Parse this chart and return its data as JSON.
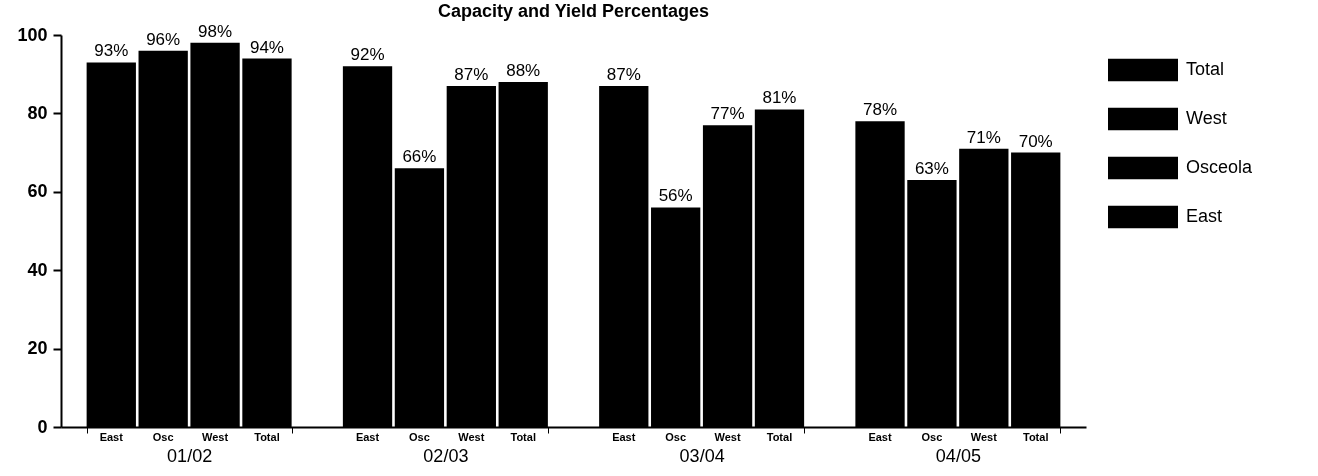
{
  "chart_data": {
    "type": "bar",
    "title": "Capacity and Yield Percentages",
    "categories": [
      "01/02",
      "02/03",
      "03/04",
      "04/05"
    ],
    "series": [
      {
        "name": "East",
        "color": "#000000",
        "values": [
          93,
          92,
          87,
          78
        ],
        "value_labels": [
          "93%",
          "92%",
          "87%",
          "78%"
        ]
      },
      {
        "name": "Osceola",
        "color": "#000000",
        "values": [
          96,
          66,
          56,
          63
        ],
        "value_labels": [
          "96%",
          "66%",
          "56%",
          "63%"
        ]
      },
      {
        "name": "West",
        "color": "#000000",
        "values": [
          98,
          87,
          77,
          71
        ],
        "value_labels": [
          "98%",
          "87%",
          "77%",
          "71%"
        ]
      },
      {
        "name": "Total",
        "color": "#000000",
        "values": [
          94,
          88,
          81,
          70
        ],
        "value_labels": [
          "94%",
          "88%",
          "81%",
          "70%"
        ]
      }
    ],
    "ylim": [
      0,
      100
    ],
    "yticks": [
      0,
      20,
      40,
      60,
      80,
      100
    ],
    "grid": false,
    "legend": "right",
    "annotations": [
      "East",
      "Osc",
      "West",
      "Total",
      "East",
      "Osc",
      "West",
      "Total",
      "East",
      "Osc",
      "West",
      "Total",
      "East",
      "Osc",
      "West",
      "Total"
    ]
  }
}
